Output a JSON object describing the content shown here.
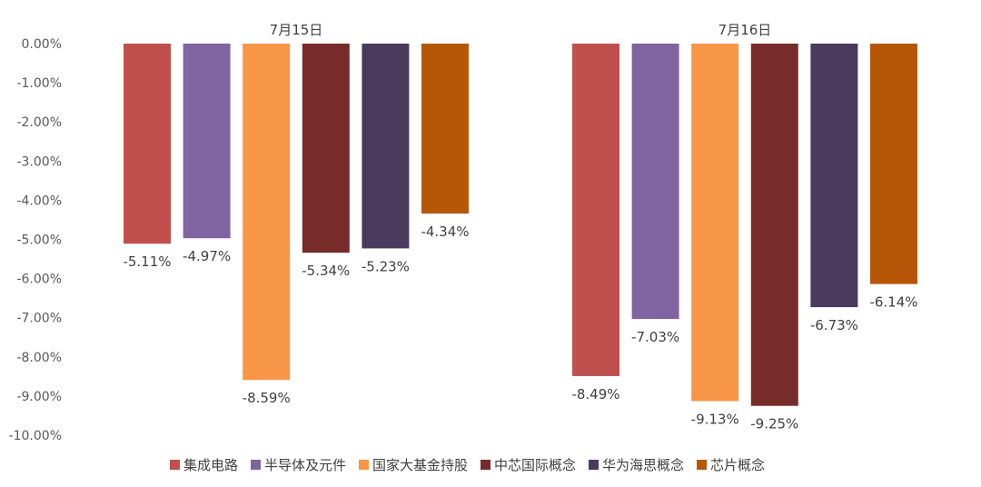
{
  "chart_data": {
    "type": "bar",
    "categories": [
      "7月15日",
      "7月16日"
    ],
    "series": [
      {
        "name": "集成电路",
        "color": "#C0504D",
        "values": [
          -5.11,
          -8.49
        ]
      },
      {
        "name": "半导体及元件",
        "color": "#8064A2",
        "values": [
          -4.97,
          -7.03
        ]
      },
      {
        "name": "国家大基金持股",
        "color": "#F79646",
        "values": [
          -8.59,
          -9.13
        ]
      },
      {
        "name": "中芯国际概念",
        "color": "#772C2A",
        "values": [
          -5.34,
          -9.25
        ]
      },
      {
        "name": "华为海思概念",
        "color": "#4A3A5E",
        "values": [
          -5.23,
          -6.73
        ]
      },
      {
        "name": "芯片概念",
        "color": "#B65708",
        "values": [
          -4.34,
          -6.14
        ]
      }
    ],
    "data_labels": [
      [
        "-5.11%",
        "-8.49%"
      ],
      [
        "-4.97%",
        "-7.03%"
      ],
      [
        "-8.59%",
        "-9.13%"
      ],
      [
        "-5.34%",
        "-9.25%"
      ],
      [
        "-5.23%",
        "-6.73%"
      ],
      [
        "-4.34%",
        "-6.14%"
      ]
    ],
    "ylim": [
      -10,
      0
    ],
    "y_ticks": [
      0,
      -1,
      -2,
      -3,
      -4,
      -5,
      -6,
      -7,
      -8,
      -9,
      -10
    ],
    "y_tick_labels": [
      "0.00%",
      "-1.00%",
      "-2.00%",
      "-3.00%",
      "-4.00%",
      "-5.00%",
      "-6.00%",
      "-7.00%",
      "-8.00%",
      "-9.00%",
      "-10.00%"
    ],
    "category_label_position": "top",
    "legend_position": "bottom",
    "grid": false
  }
}
